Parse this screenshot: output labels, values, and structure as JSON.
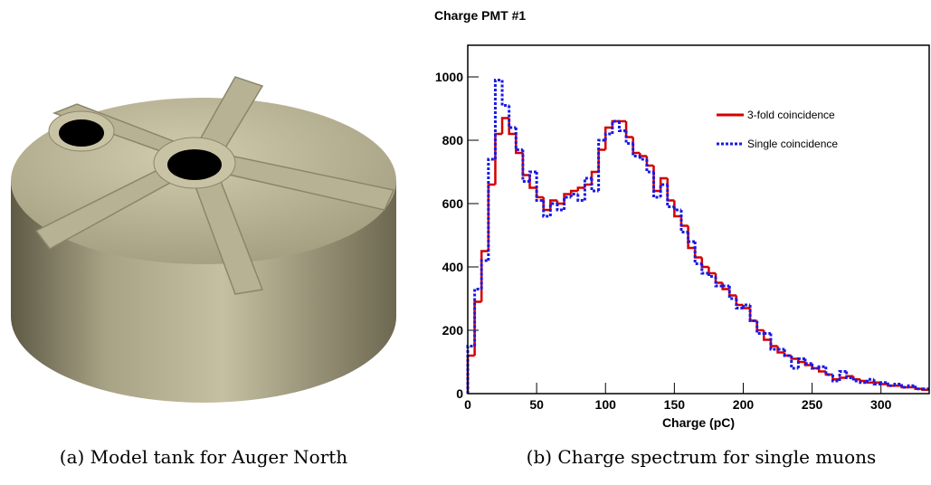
{
  "captions": [
    "(a) Model tank for Auger North",
    "(b) Charge spectrum for single muons"
  ],
  "chart_data": {
    "type": "histogram",
    "title": "Charge PMT #1",
    "x_label": "Charge (pC)",
    "bins": [
      0,
      5,
      10,
      15,
      20,
      25,
      30,
      35,
      40,
      45,
      50,
      55,
      60,
      65,
      70,
      75,
      80,
      85,
      90,
      95,
      100,
      105,
      110,
      115,
      120,
      125,
      130,
      135,
      140,
      145,
      150,
      155,
      160,
      165,
      170,
      175,
      180,
      185,
      190,
      195,
      200,
      205,
      210,
      215,
      220,
      225,
      230,
      235,
      240,
      245,
      250,
      255,
      260,
      265,
      270,
      275,
      280,
      285,
      290,
      295,
      300,
      305,
      310,
      315,
      320,
      325,
      330,
      335
    ],
    "series": [
      {
        "name": "3-fold coincidence",
        "color": "#d40000",
        "style": "solid",
        "values": [
          120,
          290,
          450,
          660,
          820,
          870,
          820,
          760,
          690,
          650,
          620,
          580,
          610,
          600,
          630,
          640,
          650,
          660,
          700,
          770,
          840,
          860,
          860,
          810,
          760,
          750,
          720,
          640,
          680,
          610,
          560,
          530,
          460,
          430,
          400,
          380,
          350,
          330,
          310,
          280,
          270,
          230,
          200,
          170,
          150,
          130,
          120,
          110,
          100,
          90,
          80,
          70,
          60,
          45,
          50,
          55,
          45,
          40,
          35,
          35,
          30,
          25,
          25,
          20,
          20,
          15,
          12
        ]
      },
      {
        "name": "Single coincidence",
        "color": "#1a1ae6",
        "style": "dotted",
        "values": [
          150,
          330,
          420,
          740,
          990,
          910,
          840,
          770,
          670,
          700,
          610,
          560,
          600,
          580,
          620,
          630,
          610,
          680,
          640,
          800,
          820,
          860,
          830,
          790,
          750,
          740,
          700,
          620,
          660,
          590,
          580,
          510,
          480,
          410,
          380,
          370,
          340,
          340,
          300,
          270,
          280,
          230,
          190,
          190,
          140,
          140,
          120,
          80,
          110,
          95,
          80,
          85,
          60,
          40,
          70,
          50,
          40,
          35,
          45,
          30,
          35,
          25,
          30,
          20,
          25,
          15,
          15
        ]
      }
    ],
    "xlim": [
      0,
      335
    ],
    "ylim": [
      0,
      1100
    ],
    "xticks": [
      0,
      50,
      100,
      150,
      200,
      250,
      300
    ],
    "yticks": [
      0,
      200,
      400,
      600,
      800,
      1000
    ],
    "legend": "upper right"
  }
}
